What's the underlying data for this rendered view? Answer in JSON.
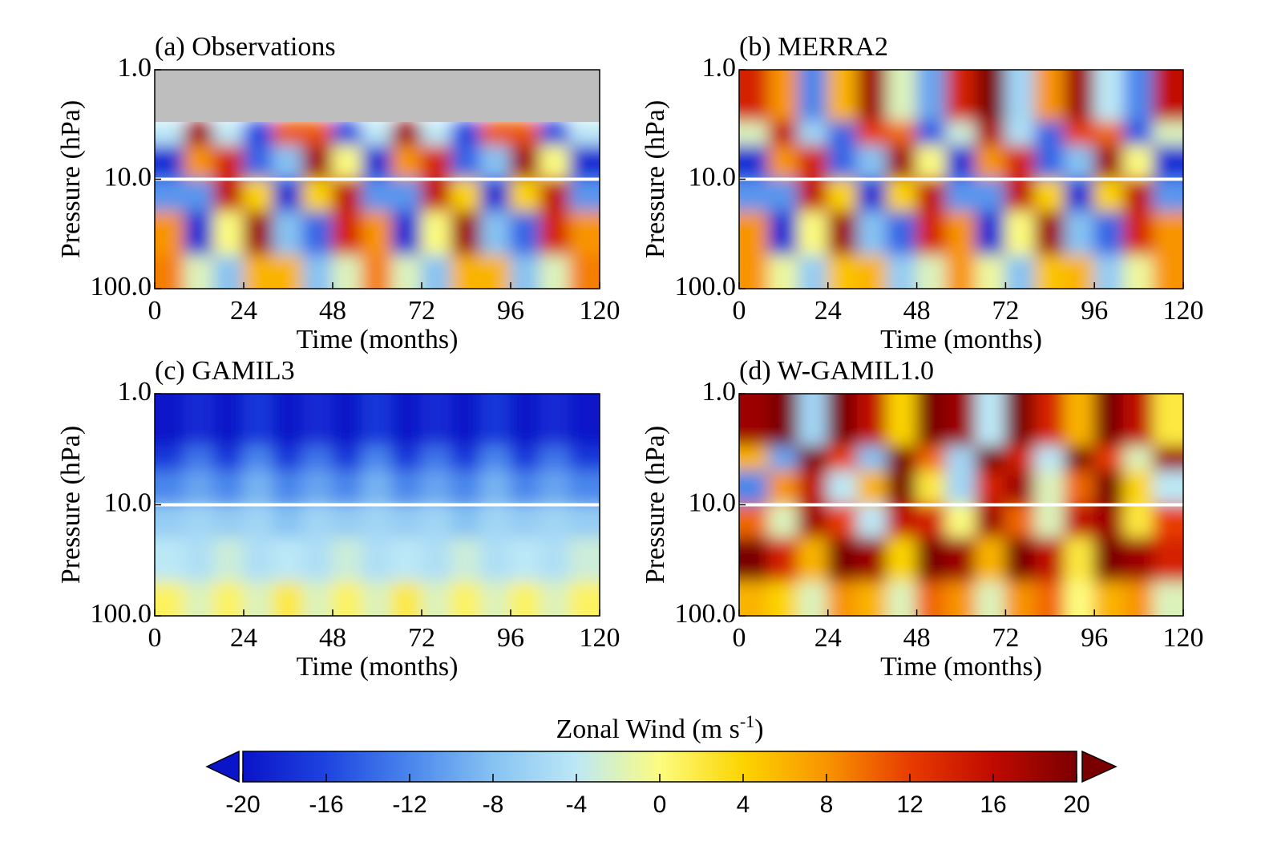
{
  "chart_data": [
    {
      "type": "heatmap",
      "title": "(a) Observations",
      "xlabel": "Time (months)",
      "ylabel": "Pressure (hPa)",
      "xbins": [
        0,
        8,
        16,
        24,
        32,
        40,
        48,
        56,
        64,
        72,
        80,
        88,
        96,
        104,
        112,
        120
      ],
      "ybins": [
        1,
        3,
        5,
        10,
        20,
        50,
        100
      ],
      "z": [
        [
          null,
          null,
          null,
          null,
          null,
          null,
          null,
          null,
          null,
          null,
          null,
          null,
          null,
          null,
          null
        ],
        [
          -4,
          18,
          -4,
          -16,
          11,
          11,
          -16,
          -4,
          18,
          -4,
          -16,
          11,
          11,
          -16,
          -4
        ],
        [
          -18,
          8,
          14,
          -14,
          -8,
          18,
          0,
          -18,
          8,
          14,
          -14,
          -8,
          18,
          0,
          -18
        ],
        [
          -11,
          -11,
          16,
          4,
          -18,
          4,
          16,
          -11,
          -11,
          16,
          4,
          -18,
          4,
          16,
          -11
        ],
        [
          8,
          -18,
          0,
          18,
          -8,
          -14,
          14,
          8,
          -18,
          0,
          18,
          -8,
          -14,
          14,
          8
        ],
        [
          9,
          -2,
          -8,
          6,
          6,
          -8,
          -2,
          9,
          -2,
          -8,
          6,
          6,
          -8,
          -2,
          9
        ]
      ],
      "xlim": [
        0,
        120
      ],
      "ylim": [
        100,
        1
      ],
      "yscale": "log",
      "xticks": [
        0,
        24,
        48,
        72,
        96,
        120
      ],
      "yticks": [
        {
          "value": 1,
          "label": "1.0"
        },
        {
          "value": 10,
          "label": "10.0"
        },
        {
          "value": 100,
          "label": "100.0"
        }
      ],
      "reference_line": {
        "value": 10,
        "color": "#ffffff"
      },
      "missing_color": "#bebebe"
    },
    {
      "type": "heatmap",
      "title": "(b) MERRA2",
      "xlabel": "Time (months)",
      "ylabel": "Pressure (hPa)",
      "xbins": [
        0,
        8,
        16,
        24,
        32,
        40,
        48,
        56,
        64,
        72,
        80,
        88,
        96,
        104,
        112,
        120
      ],
      "ybins": [
        1,
        3,
        5,
        10,
        20,
        50,
        100
      ],
      "z": [
        [
          14,
          8,
          -12,
          6,
          18,
          -2,
          -10,
          14,
          20,
          -6,
          8,
          18,
          -4,
          -12,
          16
        ],
        [
          -2,
          16,
          -6,
          -14,
          12,
          10,
          -15,
          -3,
          17,
          -5,
          -14,
          12,
          10,
          -15,
          -2
        ],
        [
          -18,
          8,
          14,
          -14,
          -8,
          18,
          0,
          -18,
          8,
          14,
          -14,
          -8,
          18,
          0,
          -18
        ],
        [
          -11,
          -11,
          16,
          4,
          -18,
          4,
          16,
          -11,
          -11,
          16,
          4,
          -18,
          4,
          16,
          -11
        ],
        [
          8,
          -18,
          0,
          18,
          -8,
          -14,
          14,
          8,
          -18,
          0,
          18,
          -8,
          -14,
          14,
          8
        ],
        [
          8,
          -1,
          -7,
          5,
          6,
          -7,
          -2,
          8,
          -1,
          -8,
          5,
          6,
          -7,
          -1,
          8
        ]
      ],
      "xlim": [
        0,
        120
      ],
      "ylim": [
        100,
        1
      ],
      "yscale": "log",
      "xticks": [
        0,
        24,
        48,
        72,
        96,
        120
      ],
      "yticks": [
        {
          "value": 1,
          "label": "1.0"
        },
        {
          "value": 10,
          "label": "10.0"
        },
        {
          "value": 100,
          "label": "100.0"
        }
      ],
      "reference_line": {
        "value": 10,
        "color": "#ffffff"
      },
      "missing_color": "#bebebe"
    },
    {
      "type": "heatmap",
      "title": "(c) GAMIL3",
      "xlabel": "Time (months)",
      "ylabel": "Pressure (hPa)",
      "xbins": [
        0,
        8,
        16,
        24,
        32,
        40,
        48,
        56,
        64,
        72,
        80,
        88,
        96,
        104,
        112,
        120
      ],
      "ybins": [
        1,
        3,
        5,
        10,
        20,
        50,
        100
      ],
      "z": [
        [
          -20,
          -18,
          -20,
          -17,
          -20,
          -18,
          -20,
          -17,
          -20,
          -18,
          -20,
          -17,
          -20,
          -18,
          -20
        ],
        [
          -17,
          -13,
          -17,
          -12,
          -17,
          -13,
          -17,
          -12,
          -17,
          -13,
          -17,
          -12,
          -17,
          -13,
          -17
        ],
        [
          -12,
          -10,
          -12,
          -9,
          -12,
          -10,
          -12,
          -9,
          -12,
          -10,
          -12,
          -9,
          -12,
          -10,
          -12
        ],
        [
          -7,
          -6,
          -7,
          -6,
          -8,
          -6,
          -7,
          -6,
          -7,
          -6,
          -8,
          -6,
          -7,
          -6,
          -7
        ],
        [
          -4,
          -5,
          -3,
          -5,
          -4,
          -5,
          -3,
          -5,
          -4,
          -5,
          -3,
          -5,
          -4,
          -5,
          -3
        ],
        [
          1,
          -2,
          1,
          -2,
          2,
          -2,
          1,
          -2,
          2,
          -2,
          1,
          -2,
          1,
          -2,
          1
        ]
      ],
      "xlim": [
        0,
        120
      ],
      "ylim": [
        100,
        1
      ],
      "yscale": "log",
      "xticks": [
        0,
        24,
        48,
        72,
        96,
        120
      ],
      "yticks": [
        {
          "value": 1,
          "label": "1.0"
        },
        {
          "value": 10,
          "label": "10.0"
        },
        {
          "value": 100,
          "label": "100.0"
        }
      ],
      "reference_line": {
        "value": 10,
        "color": "#ffffff"
      },
      "missing_color": "#bebebe"
    },
    {
      "type": "heatmap",
      "title": "(d) W-GAMIL1.0",
      "xlabel": "Time (months)",
      "ylabel": "Pressure (hPa)",
      "xbins": [
        0,
        8,
        16,
        24,
        32,
        40,
        48,
        56,
        64,
        72,
        80,
        88,
        96,
        104,
        112,
        120
      ],
      "ybins": [
        1,
        3,
        5,
        10,
        20,
        50,
        100
      ],
      "z": [
        [
          18,
          20,
          -6,
          20,
          16,
          4,
          20,
          18,
          -4,
          20,
          14,
          6,
          20,
          16,
          2
        ],
        [
          6,
          -10,
          20,
          12,
          -8,
          20,
          10,
          -6,
          20,
          14,
          -4,
          20,
          12,
          -2,
          18
        ],
        [
          -12,
          8,
          16,
          -4,
          6,
          20,
          2,
          -6,
          14,
          18,
          -2,
          10,
          20,
          4,
          -4
        ],
        [
          10,
          -2,
          18,
          12,
          -4,
          16,
          14,
          0,
          18,
          10,
          -2,
          16,
          18,
          2,
          12
        ],
        [
          20,
          14,
          6,
          20,
          18,
          4,
          20,
          18,
          6,
          20,
          16,
          2,
          20,
          18,
          14
        ],
        [
          6,
          4,
          -2,
          8,
          6,
          -2,
          10,
          8,
          -2,
          8,
          10,
          0,
          6,
          8,
          -2
        ]
      ],
      "xlim": [
        0,
        120
      ],
      "ylim": [
        100,
        1
      ],
      "yscale": "log",
      "xticks": [
        0,
        24,
        48,
        72,
        96,
        120
      ],
      "yticks": [
        {
          "value": 1,
          "label": "1.0"
        },
        {
          "value": 10,
          "label": "10.0"
        },
        {
          "value": 100,
          "label": "100.0"
        }
      ],
      "reference_line": {
        "value": 10,
        "color": "#ffffff"
      },
      "missing_color": "#bebebe"
    }
  ],
  "colorbar": {
    "label": "Zonal Wind (m s",
    "label_sup": "-1",
    "label_end": ")",
    "clim": [
      -20,
      20
    ],
    "ticks": [
      -20,
      -16,
      -12,
      -8,
      -4,
      0,
      4,
      8,
      12,
      16,
      20
    ],
    "colormap": [
      "#0a14c8",
      "#1e44e0",
      "#4a86ec",
      "#86c2f2",
      "#bce8f6",
      "#fcfc80",
      "#fcd400",
      "#f89400",
      "#e83c00",
      "#c00a00",
      "#7a0000"
    ]
  }
}
